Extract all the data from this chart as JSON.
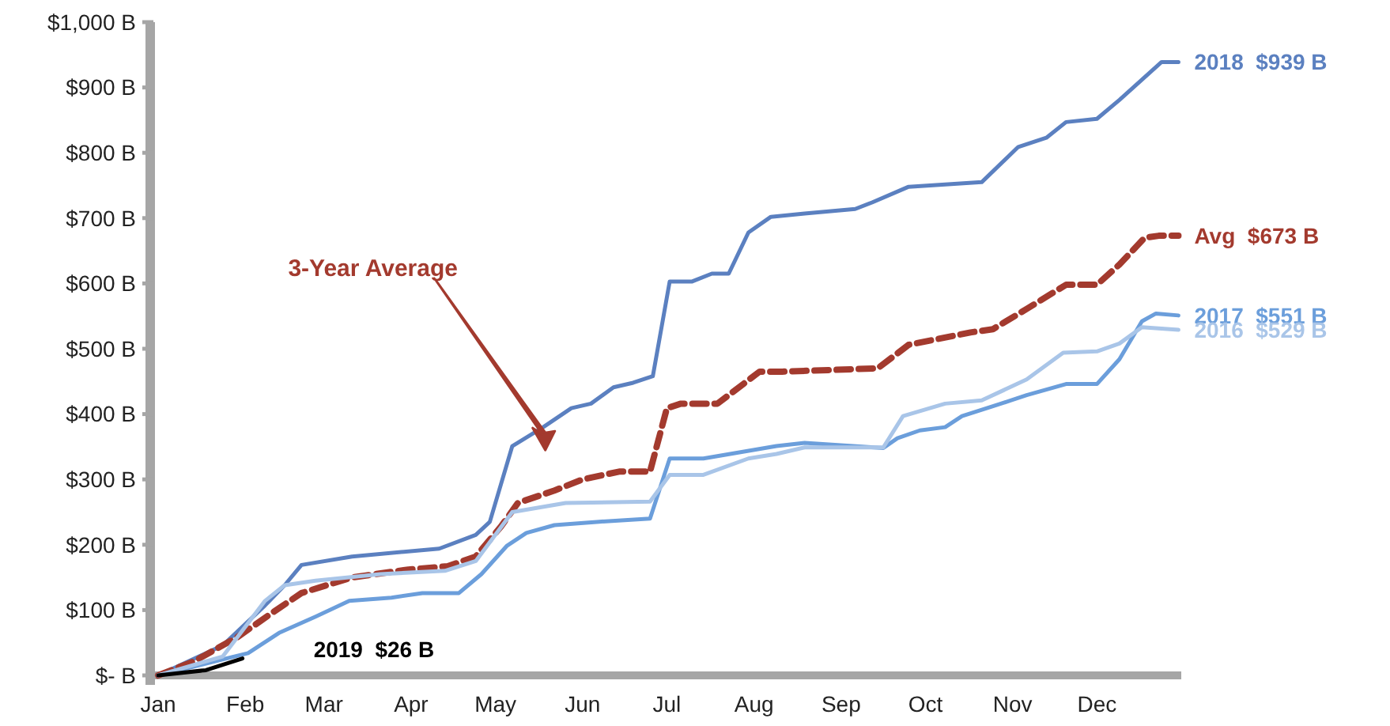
{
  "chart_data": {
    "type": "line",
    "xlim": [
      "--01-01",
      "--12-31"
    ],
    "ylim": [
      0,
      1000
    ],
    "xticks": [
      {
        "value": "--01-01",
        "label": "Jan"
      },
      {
        "value": "--02-01",
        "label": "Feb"
      },
      {
        "value": "--03-01",
        "label": "Mar"
      },
      {
        "value": "--04-01",
        "label": "Apr"
      },
      {
        "value": "--05-01",
        "label": "May"
      },
      {
        "value": "--06-01",
        "label": "Jun"
      },
      {
        "value": "--07-01",
        "label": "Jul"
      },
      {
        "value": "--08-01",
        "label": "Aug"
      },
      {
        "value": "--09-01",
        "label": "Sep"
      },
      {
        "value": "--10-01",
        "label": "Oct"
      },
      {
        "value": "--11-01",
        "label": "Nov"
      },
      {
        "value": "--12-01",
        "label": "Dec"
      }
    ],
    "yticks": [
      {
        "value": 0,
        "label": "$- B"
      },
      {
        "value": 100,
        "label": "$100 B"
      },
      {
        "value": 200,
        "label": "$200 B"
      },
      {
        "value": 300,
        "label": "$300 B"
      },
      {
        "value": 400,
        "label": "$400 B"
      },
      {
        "value": 500,
        "label": "$500 B"
      },
      {
        "value": 600,
        "label": "$600 B"
      },
      {
        "value": 700,
        "label": "$700 B"
      },
      {
        "value": 800,
        "label": "$800 B"
      },
      {
        "value": 900,
        "label": "$900 B"
      },
      {
        "value": 1000,
        "label": "$1,000 B"
      }
    ],
    "grid": false,
    "marker": "none",
    "series": [
      {
        "name": "2018  $939 B",
        "color": "#5b80c0",
        "x": [
          "--01-01",
          "--01-24",
          "--02-08",
          "--02-15",
          "--02-21",
          "--03-11",
          "--04-11",
          "--04-24",
          "--04-29",
          "--05-07",
          "--05-18",
          "--05-28",
          "--06-04",
          "--06-12",
          "--06-19",
          "--06-26",
          "--07-02",
          "--07-10",
          "--07-17",
          "--07-23",
          "--07-30",
          "--08-07",
          "--08-19",
          "--09-06",
          "--09-12",
          "--09-25",
          "--10-21",
          "--11-03",
          "--11-13",
          "--11-20",
          "--12-01",
          "--12-09",
          "--12-24",
          "--12-30"
        ],
        "values": [
          0,
          46,
          107,
          138,
          169,
          182,
          194,
          215,
          235,
          351,
          380,
          409,
          416,
          441,
          448,
          458,
          603,
          603,
          615,
          615,
          678,
          702,
          707,
          714,
          724,
          748,
          755,
          809,
          823,
          847,
          852,
          881,
          939,
          939
        ]
      },
      {
        "name": "Avg  $673 B",
        "color": "#a33a2e",
        "line_style": "dashed",
        "x": [
          "--01-01",
          "--01-14",
          "--01-29",
          "--02-11",
          "--02-21",
          "--03-11",
          "--03-31",
          "--04-14",
          "--04-24",
          "--05-03",
          "--05-09",
          "--05-22",
          "--06-01",
          "--06-14",
          "--06-25",
          "--07-01",
          "--07-06",
          "--07-19",
          "--08-03",
          "--08-11",
          "--09-14",
          "--09-25",
          "--10-17",
          "--10-25",
          "--11-06",
          "--11-20",
          "--12-01",
          "--12-09",
          "--12-18",
          "--12-23",
          "--12-30"
        ],
        "values": [
          0,
          22,
          58,
          97,
          126,
          150,
          162,
          167,
          182,
          228,
          264,
          283,
          300,
          312,
          312,
          409,
          416,
          416,
          465,
          465,
          470,
          506,
          525,
          530,
          561,
          598,
          598,
          629,
          670,
          673,
          673
        ]
      },
      {
        "name": "2017  $551 B",
        "color": "#6b9edb",
        "x": [
          "--01-01",
          "--02-02",
          "--02-13",
          "--02-26",
          "--03-10",
          "--03-25",
          "--04-05",
          "--04-18",
          "--04-26",
          "--05-05",
          "--05-12",
          "--05-22",
          "--06-06",
          "--06-25",
          "--07-02",
          "--07-14",
          "--08-09",
          "--08-19",
          "--09-16",
          "--09-21",
          "--09-29",
          "--10-08",
          "--10-14",
          "--10-25",
          "--11-06",
          "--11-20",
          "--12-01",
          "--12-09",
          "--12-17",
          "--12-22",
          "--12-30"
        ],
        "values": [
          0,
          34,
          65,
          90,
          114,
          119,
          126,
          126,
          155,
          198,
          218,
          230,
          235,
          240,
          332,
          332,
          351,
          356,
          348,
          363,
          375,
          380,
          397,
          412,
          429,
          446,
          446,
          484,
          542,
          554,
          551
        ]
      },
      {
        "name": "2016  $529 B",
        "color": "#a9c5e8",
        "x": [
          "--01-01",
          "--01-24",
          "--02-08",
          "--02-15",
          "--02-26",
          "--03-21",
          "--04-13",
          "--04-24",
          "--05-07",
          "--05-26",
          "--06-25",
          "--07-02",
          "--07-14",
          "--07-30",
          "--08-09",
          "--08-19",
          "--09-16",
          "--09-23",
          "--10-08",
          "--10-21",
          "--11-06",
          "--11-19",
          "--12-01",
          "--12-09",
          "--12-17",
          "--12-30"
        ],
        "values": [
          0,
          29,
          114,
          138,
          145,
          155,
          160,
          175,
          250,
          264,
          266,
          307,
          307,
          332,
          339,
          349,
          349,
          397,
          416,
          421,
          453,
          494,
          496,
          508,
          533,
          529
        ]
      },
      {
        "name": "2019  $26 B",
        "color": "#000000",
        "x": [
          "--01-01",
          "--01-18",
          "--01-31"
        ],
        "values": [
          0,
          8,
          26
        ]
      }
    ],
    "annotations": [
      "3-Year Average"
    ]
  }
}
